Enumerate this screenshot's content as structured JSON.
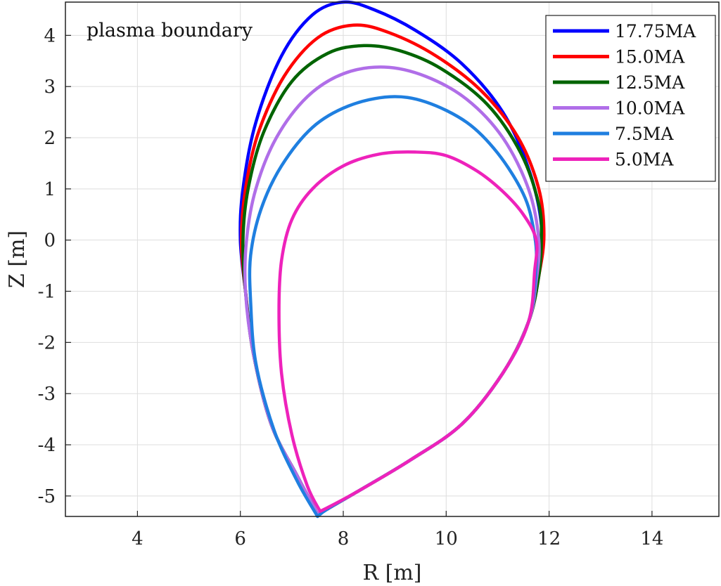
{
  "chart_data": {
    "type": "line",
    "xlabel": "R [m]",
    "ylabel": "Z [m]",
    "annotation": "plasma boundary",
    "xlim": [
      2.6,
      15.3
    ],
    "ylim": [
      -5.4,
      4.65
    ],
    "x_ticks": [
      4,
      6,
      8,
      10,
      12,
      14
    ],
    "y_ticks": [
      4,
      3,
      2,
      1,
      0,
      -1,
      -2,
      -3,
      -4,
      -5
    ],
    "grid": true,
    "legend_position": "top-right",
    "series": [
      {
        "name": "17.75MA",
        "color": "#0000ff",
        "points": [
          [
            7.5,
            -5.35
          ],
          [
            7.1,
            -4.6
          ],
          [
            6.6,
            -3.6
          ],
          [
            6.25,
            -2.2
          ],
          [
            6.1,
            -1.0
          ],
          [
            6.0,
            0.0
          ],
          [
            6.05,
            1.0
          ],
          [
            6.3,
            2.3
          ],
          [
            6.8,
            3.6
          ],
          [
            7.4,
            4.4
          ],
          [
            8.0,
            4.65
          ],
          [
            8.6,
            4.5
          ],
          [
            9.4,
            4.1
          ],
          [
            10.3,
            3.45
          ],
          [
            11.1,
            2.5
          ],
          [
            11.6,
            1.4
          ],
          [
            11.85,
            0.3
          ],
          [
            11.8,
            -0.6
          ],
          [
            11.6,
            -1.6
          ],
          [
            11.1,
            -2.6
          ],
          [
            10.3,
            -3.6
          ],
          [
            9.3,
            -4.3
          ],
          [
            8.3,
            -4.9
          ],
          [
            7.7,
            -5.25
          ],
          [
            7.5,
            -5.35
          ]
        ]
      },
      {
        "name": "15.0MA",
        "color": "#ff0000",
        "points": [
          [
            7.5,
            -5.35
          ],
          [
            7.1,
            -4.6
          ],
          [
            6.6,
            -3.6
          ],
          [
            6.25,
            -2.2
          ],
          [
            6.1,
            -1.0
          ],
          [
            6.02,
            0.0
          ],
          [
            6.1,
            1.0
          ],
          [
            6.35,
            2.1
          ],
          [
            6.85,
            3.2
          ],
          [
            7.5,
            3.95
          ],
          [
            8.2,
            4.2
          ],
          [
            8.9,
            4.05
          ],
          [
            9.8,
            3.6
          ],
          [
            10.7,
            2.9
          ],
          [
            11.4,
            2.0
          ],
          [
            11.8,
            1.0
          ],
          [
            11.9,
            0.1
          ],
          [
            11.8,
            -0.7
          ],
          [
            11.6,
            -1.6
          ],
          [
            11.1,
            -2.6
          ],
          [
            10.3,
            -3.6
          ],
          [
            9.3,
            -4.3
          ],
          [
            8.3,
            -4.9
          ],
          [
            7.7,
            -5.25
          ],
          [
            7.5,
            -5.35
          ]
        ]
      },
      {
        "name": "12.5MA",
        "color": "#006400",
        "points": [
          [
            7.5,
            -5.35
          ],
          [
            7.1,
            -4.6
          ],
          [
            6.6,
            -3.6
          ],
          [
            6.25,
            -2.2
          ],
          [
            6.1,
            -1.0
          ],
          [
            6.05,
            0.0
          ],
          [
            6.15,
            1.0
          ],
          [
            6.45,
            2.1
          ],
          [
            7.0,
            3.1
          ],
          [
            7.7,
            3.65
          ],
          [
            8.4,
            3.8
          ],
          [
            9.1,
            3.7
          ],
          [
            9.9,
            3.35
          ],
          [
            10.8,
            2.65
          ],
          [
            11.45,
            1.7
          ],
          [
            11.8,
            0.7
          ],
          [
            11.85,
            0.0
          ],
          [
            11.8,
            -0.7
          ],
          [
            11.6,
            -1.6
          ],
          [
            11.1,
            -2.6
          ],
          [
            10.3,
            -3.6
          ],
          [
            9.3,
            -4.3
          ],
          [
            8.3,
            -4.9
          ],
          [
            7.7,
            -5.25
          ],
          [
            7.5,
            -5.35
          ]
        ]
      },
      {
        "name": "10.0MA",
        "color": "#b06ee8",
        "points": [
          [
            7.5,
            -5.35
          ],
          [
            7.1,
            -4.6
          ],
          [
            6.6,
            -3.6
          ],
          [
            6.25,
            -2.2
          ],
          [
            6.1,
            -1.0
          ],
          [
            6.12,
            0.0
          ],
          [
            6.3,
            1.0
          ],
          [
            6.7,
            2.0
          ],
          [
            7.3,
            2.8
          ],
          [
            8.0,
            3.25
          ],
          [
            8.8,
            3.38
          ],
          [
            9.6,
            3.2
          ],
          [
            10.4,
            2.75
          ],
          [
            11.1,
            2.0
          ],
          [
            11.6,
            1.0
          ],
          [
            11.8,
            0.0
          ],
          [
            11.75,
            -0.8
          ],
          [
            11.6,
            -1.6
          ],
          [
            11.1,
            -2.6
          ],
          [
            10.3,
            -3.6
          ],
          [
            9.3,
            -4.3
          ],
          [
            8.3,
            -4.9
          ],
          [
            7.7,
            -5.25
          ],
          [
            7.5,
            -5.35
          ]
        ]
      },
      {
        "name": "7.5MA",
        "color": "#1f7fe0",
        "points": [
          [
            7.5,
            -5.4
          ],
          [
            7.1,
            -4.7
          ],
          [
            6.65,
            -3.7
          ],
          [
            6.3,
            -2.4
          ],
          [
            6.2,
            -1.2
          ],
          [
            6.2,
            -0.3
          ],
          [
            6.4,
            0.6
          ],
          [
            6.8,
            1.45
          ],
          [
            7.4,
            2.2
          ],
          [
            8.1,
            2.62
          ],
          [
            8.9,
            2.8
          ],
          [
            9.6,
            2.7
          ],
          [
            10.4,
            2.3
          ],
          [
            11.0,
            1.7
          ],
          [
            11.5,
            0.9
          ],
          [
            11.7,
            0.2
          ],
          [
            11.75,
            -0.5
          ],
          [
            11.6,
            -1.6
          ],
          [
            11.1,
            -2.6
          ],
          [
            10.3,
            -3.6
          ],
          [
            9.3,
            -4.3
          ],
          [
            8.3,
            -4.9
          ],
          [
            7.7,
            -5.25
          ],
          [
            7.5,
            -5.4
          ]
        ]
      },
      {
        "name": "5.0MA",
        "color": "#ee22bb",
        "points": [
          [
            7.55,
            -5.3
          ],
          [
            7.3,
            -4.8
          ],
          [
            7.0,
            -3.8
          ],
          [
            6.8,
            -2.6
          ],
          [
            6.75,
            -1.4
          ],
          [
            6.8,
            -0.4
          ],
          [
            7.0,
            0.4
          ],
          [
            7.4,
            1.0
          ],
          [
            8.0,
            1.45
          ],
          [
            8.7,
            1.68
          ],
          [
            9.4,
            1.72
          ],
          [
            10.0,
            1.65
          ],
          [
            10.6,
            1.35
          ],
          [
            11.1,
            0.95
          ],
          [
            11.5,
            0.5
          ],
          [
            11.75,
            0.0
          ],
          [
            11.72,
            -0.6
          ],
          [
            11.6,
            -1.6
          ],
          [
            11.1,
            -2.6
          ],
          [
            10.3,
            -3.6
          ],
          [
            9.3,
            -4.3
          ],
          [
            8.3,
            -4.9
          ],
          [
            7.75,
            -5.2
          ],
          [
            7.55,
            -5.3
          ]
        ]
      }
    ]
  }
}
